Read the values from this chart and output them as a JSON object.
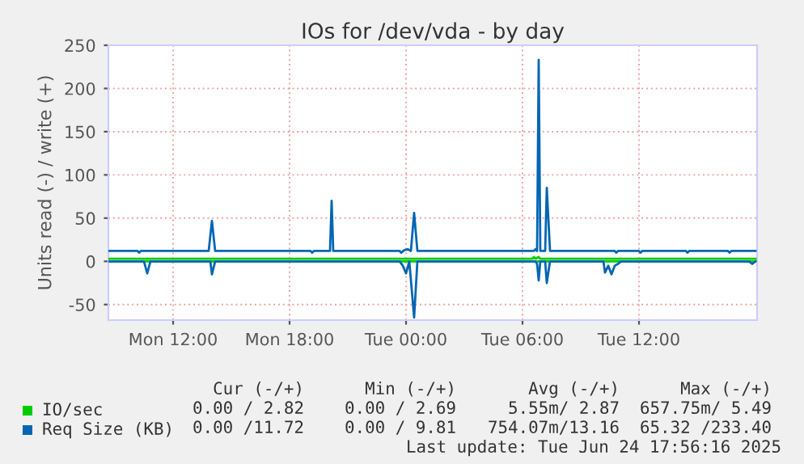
{
  "chart_data": {
    "type": "line",
    "title": "IOs for /dev/vda - by day",
    "ylabel": "Units read (-) / write (+)",
    "xlim": [
      "2025-06-23T08:40",
      "2025-06-24T18:05"
    ],
    "xticks": [
      {
        "value": "2025-06-23T12:00",
        "label": "Mon 12:00"
      },
      {
        "value": "2025-06-23T18:00",
        "label": "Mon 18:00"
      },
      {
        "value": "2025-06-24T00:00",
        "label": "Tue 00:00"
      },
      {
        "value": "2025-06-24T06:00",
        "label": "Tue 06:00"
      },
      {
        "value": "2025-06-24T12:00",
        "label": "Tue 12:00"
      }
    ],
    "ylim": [
      -68,
      250
    ],
    "yticks": [
      -50,
      0,
      50,
      100,
      150,
      200,
      250
    ],
    "grid": true,
    "legend": "bottom",
    "series": [
      {
        "name": "IO/sec",
        "color": "#00cc00",
        "x": [
          "2025-06-23T08:40",
          "2025-06-24T18:00"
        ],
        "values": [
          0,
          0
        ]
      },
      {
        "color": "#00cc00",
        "x": [
          "2025-06-23T08:40",
          "2025-06-24T06:30",
          "2025-06-24T06:35",
          "2025-06-24T06:40",
          "2025-06-24T06:50",
          "2025-06-24T06:55",
          "2025-06-24T18:00"
        ],
        "values": [
          3,
          3,
          5,
          3,
          5,
          3,
          3
        ]
      },
      {
        "name": "Req Size (KB)",
        "color": "#0066b3",
        "x": [
          "2025-06-23T08:40",
          "2025-06-23T10:30",
          "2025-06-23T10:40",
          "2025-06-23T10:50",
          "2025-06-23T13:55",
          "2025-06-23T14:00",
          "2025-06-23T14:10",
          "2025-06-23T23:40",
          "2025-06-23T23:50",
          "2025-06-24T00:00",
          "2025-06-24T00:10",
          "2025-06-24T00:25",
          "2025-06-24T00:35",
          "2025-06-24T06:40",
          "2025-06-24T06:45",
          "2025-06-24T06:50",
          "2025-06-24T06:55",
          "2025-06-24T07:10",
          "2025-06-24T07:15",
          "2025-06-24T07:25",
          "2025-06-24T10:10",
          "2025-06-24T10:15",
          "2025-06-24T10:25",
          "2025-06-24T10:35",
          "2025-06-24T10:45",
          "2025-06-24T10:55",
          "2025-06-24T11:05",
          "2025-06-24T17:40",
          "2025-06-24T17:50",
          "2025-06-24T18:00"
        ],
        "values": [
          0,
          0,
          -14,
          0,
          0,
          -15,
          0,
          0,
          -5,
          -14,
          0,
          -65,
          0,
          0,
          -3,
          -22,
          0,
          0,
          -25,
          0,
          0,
          -13,
          -5,
          -15,
          -5,
          -3,
          0,
          0,
          -3,
          0
        ]
      },
      {
        "color": "#0066b3",
        "x": [
          "2025-06-23T08:40",
          "2025-06-23T10:10",
          "2025-06-23T10:15",
          "2025-06-23T10:20",
          "2025-06-23T13:50",
          "2025-06-23T14:00",
          "2025-06-23T14:10",
          "2025-06-23T19:05",
          "2025-06-23T19:10",
          "2025-06-23T19:15",
          "2025-06-23T20:05",
          "2025-06-23T20:10",
          "2025-06-23T20:15",
          "2025-06-23T23:40",
          "2025-06-23T23:45",
          "2025-06-23T23:55",
          "2025-06-24T00:05",
          "2025-06-24T00:15",
          "2025-06-24T00:25",
          "2025-06-24T00:35",
          "2025-06-24T06:35",
          "2025-06-24T06:40",
          "2025-06-24T06:45",
          "2025-06-24T06:50",
          "2025-06-24T06:55",
          "2025-06-24T07:10",
          "2025-06-24T07:15",
          "2025-06-24T07:25",
          "2025-06-24T10:45",
          "2025-06-24T10:50",
          "2025-06-24T10:55",
          "2025-06-24T12:00",
          "2025-06-24T12:05",
          "2025-06-24T12:10",
          "2025-06-24T14:25",
          "2025-06-24T14:30",
          "2025-06-24T14:35",
          "2025-06-24T16:35",
          "2025-06-24T16:40",
          "2025-06-24T16:45",
          "2025-06-24T18:00"
        ],
        "values": [
          12,
          12,
          10,
          12,
          12,
          47,
          12,
          12,
          10,
          12,
          12,
          70,
          12,
          12,
          10,
          13,
          14,
          12,
          56,
          12,
          12,
          14,
          12,
          233,
          12,
          12,
          85,
          12,
          12,
          10,
          12,
          12,
          10,
          12,
          12,
          10,
          12,
          12,
          10,
          12,
          12
        ]
      }
    ],
    "annotations": [
      "Cur (-/+)",
      "Min (-/+)",
      "Avg (-/+)",
      "Max (-/+)",
      "0.00 / 2.82",
      "0.00 / 2.69",
      "5.55m/ 2.87",
      "657.75m/ 5.49",
      "0.00 /11.72",
      "0.00 / 9.81",
      "754.07m/13.16",
      "65.32 /233.40",
      "Last update: Tue Jun 24 17:56:16 2025"
    ]
  }
}
